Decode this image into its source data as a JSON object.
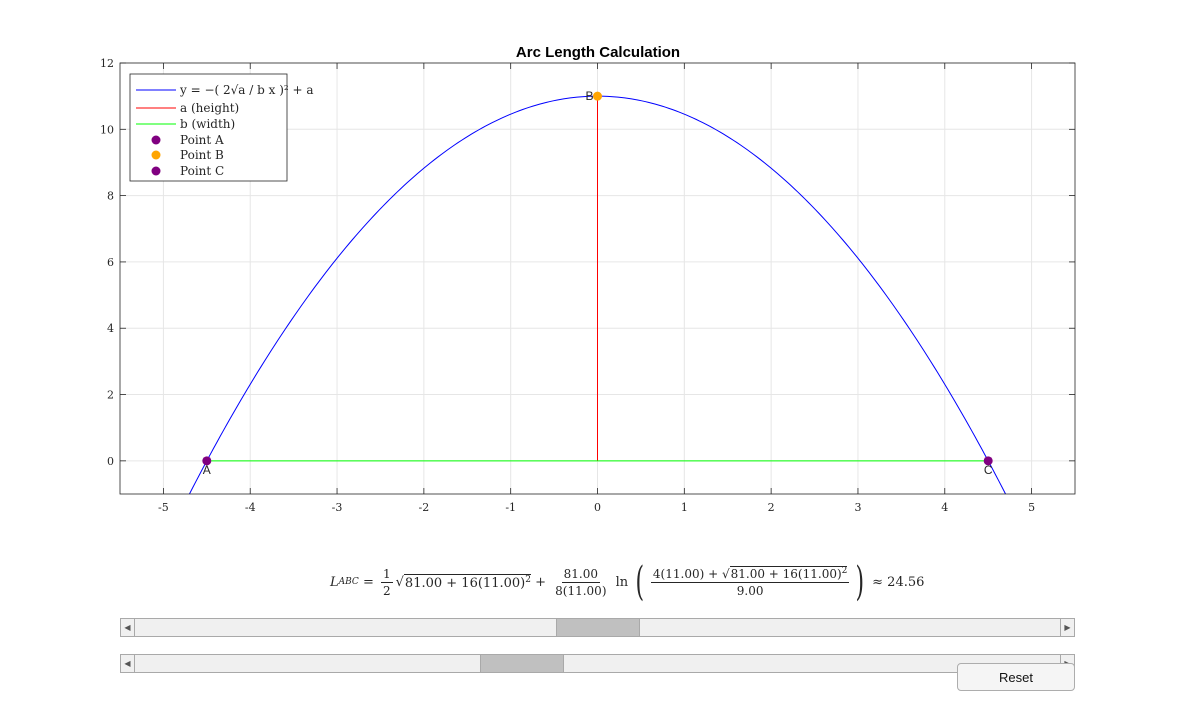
{
  "chart_data": {
    "type": "line",
    "title": "Arc Length Calculation",
    "xlabel": "",
    "ylabel": "",
    "xlim": [
      -5.5,
      5.5
    ],
    "ylim": [
      -1,
      12
    ],
    "xticks": [
      -5,
      -4,
      -3,
      -2,
      -1,
      0,
      1,
      2,
      3,
      4,
      5
    ],
    "yticks": [
      0,
      2,
      4,
      6,
      8,
      10,
      12
    ],
    "grid": true,
    "legend_position": "top-left",
    "params": {
      "a": 11.0,
      "b": 9.0
    },
    "series": [
      {
        "name": "parabola",
        "kind": "curve",
        "color": "#0000ff",
        "x_range": [
          -4.7,
          4.7
        ]
      },
      {
        "name": "a (height)",
        "kind": "line",
        "color": "#ff0000",
        "x": [
          0,
          0
        ],
        "y": [
          0,
          11
        ]
      },
      {
        "name": "b (width)",
        "kind": "line",
        "color": "#00ff00",
        "x": [
          -4.5,
          4.5
        ],
        "y": [
          0,
          0
        ]
      },
      {
        "name": "Point A",
        "kind": "point",
        "color": "#800080",
        "x": -4.5,
        "y": 0,
        "label": "A"
      },
      {
        "name": "Point B",
        "kind": "point",
        "color": "#ffa500",
        "x": 0,
        "y": 11,
        "label": "B"
      },
      {
        "name": "Point C",
        "kind": "point",
        "color": "#800080",
        "x": 4.5,
        "y": 0,
        "label": "C"
      }
    ],
    "legend": {
      "parabola_formula": "y = −( 2√a / b x )² + a",
      "height": "a (height)",
      "width": "b (width)",
      "point_a": "Point A",
      "point_b": "Point B",
      "point_c": "Point C"
    }
  },
  "formula": {
    "lhs": "L",
    "lhs_sub": "ABC",
    "b2": "81.00",
    "a": "11.00",
    "b": "9.00",
    "result": "24.56"
  },
  "sliders": [
    {
      "name": "height-slider",
      "position": 0.5
    },
    {
      "name": "width-slider",
      "position": 0.41
    }
  ],
  "reset_label": "Reset"
}
